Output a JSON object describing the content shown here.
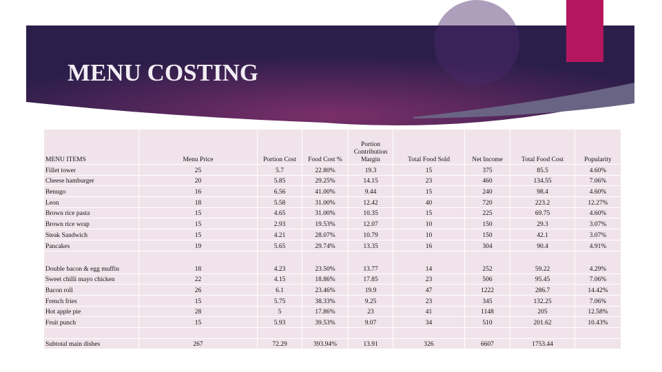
{
  "title": "MENU COSTING",
  "table": {
    "header": [
      "MENU ITEMS",
      "Menu Price",
      "Portion Cost",
      "Food Cost %",
      "Portion Contribution Margin",
      "Total Food Sold",
      "Net Income",
      "Total Food Cost",
      "Popularity"
    ],
    "rows": [
      [
        "Fillet tower",
        "25",
        "5.7",
        "22.80%",
        "19.3",
        "15",
        "375",
        "85.5",
        "4.60%"
      ],
      [
        "Cheese hamburger",
        "20",
        "5.85",
        "29.25%",
        "14.15",
        "23",
        "460",
        "134.55",
        "7.06%"
      ],
      [
        "Benugo",
        "16",
        "6.56",
        "41.00%",
        "9.44",
        "15",
        "240",
        "98.4",
        "4.60%"
      ],
      [
        "Leon",
        "18",
        "5.58",
        "31.00%",
        "12.42",
        "40",
        "720",
        "223.2",
        "12.27%"
      ],
      [
        "Brown rice pasta",
        "15",
        "4.65",
        "31.00%",
        "10.35",
        "15",
        "225",
        "69.75",
        "4.60%"
      ],
      [
        "Brown rice wrap",
        "15",
        "2.93",
        "19.53%",
        "12.07",
        "10",
        "150",
        "29.3",
        "3.07%"
      ],
      [
        "Steak Sandwich",
        "15",
        "4.21",
        "28.07%",
        "10.79",
        "10",
        "150",
        "42.1",
        "3.07%"
      ],
      [
        "Pancakes",
        "19",
        "5.65",
        "29.74%",
        "13.35",
        "16",
        "304",
        "90.4",
        "4.91%"
      ],
      [
        "Double bacon & egg muffin",
        "18",
        "4.23",
        "23.50%",
        "13.77",
        "14",
        "252",
        "59.22",
        "4.29%"
      ],
      [
        "Sweet chilli mayo chicken",
        "22",
        "4.15",
        "18.86%",
        "17.85",
        "23",
        "506",
        "95.45",
        "7.06%"
      ],
      [
        "Bacon roll",
        "26",
        "6.1",
        "23.46%",
        "19.9",
        "47",
        "1222",
        "286.7",
        "14.42%"
      ],
      [
        "French fries",
        "15",
        "5.75",
        "38.33%",
        "9.25",
        "23",
        "345",
        "132.25",
        "7.06%"
      ],
      [
        "Hot apple pie",
        "28",
        "5",
        "17.86%",
        "23",
        "41",
        "1148",
        "205",
        "12.58%"
      ],
      [
        "Fruit punch",
        "15",
        "5.93",
        "39.53%",
        "9.07",
        "34",
        "510",
        "201.62",
        "10.43%"
      ]
    ],
    "subtotal": [
      "Subtotal main dishes",
      "267",
      "72.29",
      "393.94%",
      "13.91",
      "326",
      "6607",
      "1753.44"
    ]
  }
}
